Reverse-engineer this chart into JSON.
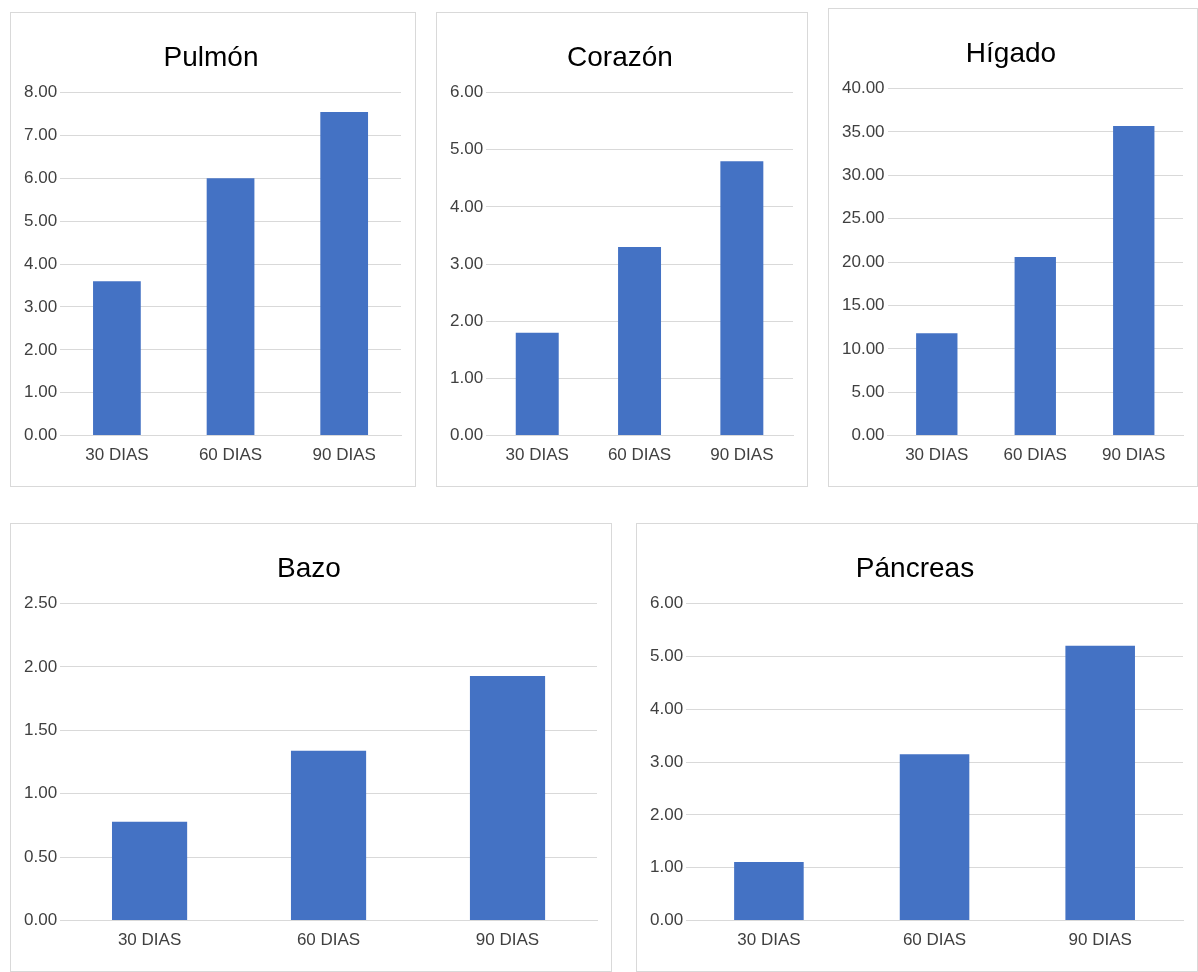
{
  "chart_data": [
    {
      "type": "bar",
      "title": "Pulmón",
      "categories": [
        "30 DIAS",
        "60 DIAS",
        "90 DIAS"
      ],
      "values": [
        3.6,
        6.0,
        7.55
      ],
      "color": "#4472c4",
      "ylim": [
        0,
        8
      ],
      "yticks": [
        {
          "value": 0,
          "label": "0.00"
        },
        {
          "value": 1,
          "label": "1.00"
        },
        {
          "value": 2,
          "label": "2.00"
        },
        {
          "value": 3,
          "label": "3.00"
        },
        {
          "value": 4,
          "label": "4.00"
        },
        {
          "value": 5,
          "label": "5.00"
        },
        {
          "value": 6,
          "label": "6.00"
        },
        {
          "value": 7,
          "label": "7.00"
        },
        {
          "value": 8,
          "label": "8.00"
        }
      ],
      "grid": "y"
    },
    {
      "type": "bar",
      "title": "Corazón",
      "categories": [
        "30 DIAS",
        "60 DIAS",
        "90 DIAS"
      ],
      "values": [
        1.8,
        3.3,
        4.8
      ],
      "color": "#4472c4",
      "ylim": [
        0,
        6
      ],
      "yticks": [
        {
          "value": 0,
          "label": "0.00"
        },
        {
          "value": 1,
          "label": "1.00"
        },
        {
          "value": 2,
          "label": "2.00"
        },
        {
          "value": 3,
          "label": "3.00"
        },
        {
          "value": 4,
          "label": "4.00"
        },
        {
          "value": 5,
          "label": "5.00"
        },
        {
          "value": 6,
          "label": "6.00"
        }
      ],
      "grid": "y"
    },
    {
      "type": "bar",
      "title": "Hígado",
      "categories": [
        "30 DIAS",
        "60 DIAS",
        "90 DIAS"
      ],
      "values": [
        11.8,
        20.6,
        35.7
      ],
      "color": "#4472c4",
      "ylim": [
        0,
        40
      ],
      "yticks": [
        {
          "value": 0,
          "label": "0.00"
        },
        {
          "value": 5,
          "label": "5.00"
        },
        {
          "value": 10,
          "label": "10.00"
        },
        {
          "value": 15,
          "label": "15.00"
        },
        {
          "value": 20,
          "label": "20.00"
        },
        {
          "value": 25,
          "label": "25.00"
        },
        {
          "value": 30,
          "label": "30.00"
        },
        {
          "value": 35,
          "label": "35.00"
        },
        {
          "value": 40,
          "label": "40.00"
        }
      ],
      "grid": "y"
    },
    {
      "type": "bar",
      "title": "Bazo",
      "categories": [
        "30 DIAS",
        "60 DIAS",
        "90 DIAS"
      ],
      "values": [
        0.78,
        1.34,
        1.93
      ],
      "color": "#4472c4",
      "ylim": [
        0,
        2.5
      ],
      "yticks": [
        {
          "value": 0,
          "label": "0.00"
        },
        {
          "value": 0.5,
          "label": "0.50"
        },
        {
          "value": 1,
          "label": "1.00"
        },
        {
          "value": 1.5,
          "label": "1.50"
        },
        {
          "value": 2,
          "label": "2.00"
        },
        {
          "value": 2.5,
          "label": "2.50"
        }
      ],
      "grid": "y"
    },
    {
      "type": "bar",
      "title": "Páncreas",
      "categories": [
        "30 DIAS",
        "60 DIAS",
        "90 DIAS"
      ],
      "values": [
        1.11,
        3.15,
        5.2
      ],
      "color": "#4472c4",
      "ylim": [
        0,
        6
      ],
      "yticks": [
        {
          "value": 0,
          "label": "0.00"
        },
        {
          "value": 1,
          "label": "1.00"
        },
        {
          "value": 2,
          "label": "2.00"
        },
        {
          "value": 3,
          "label": "3.00"
        },
        {
          "value": 4,
          "label": "4.00"
        },
        {
          "value": 5,
          "label": "5.00"
        },
        {
          "value": 6,
          "label": "6.00"
        }
      ],
      "grid": "y"
    }
  ]
}
